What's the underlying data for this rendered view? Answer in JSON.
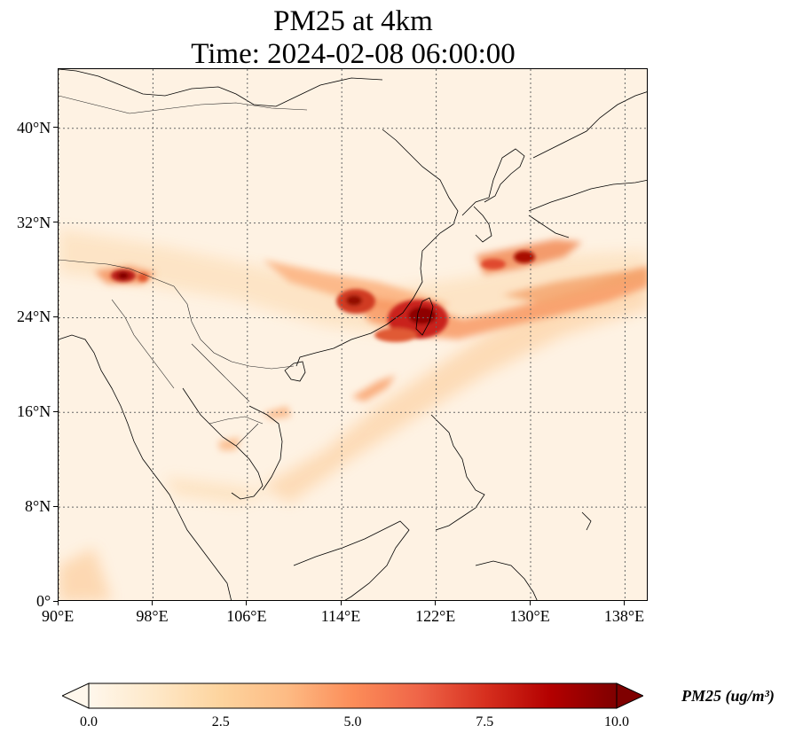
{
  "title": {
    "line1": "PM25 at 4km",
    "line2": "Time: 2024-02-08 06:00:00"
  },
  "map": {
    "lon_range": [
      90,
      140
    ],
    "lat_range": [
      0,
      45
    ],
    "lon_ticks": [
      "90°E",
      "98°E",
      "106°E",
      "114°E",
      "122°E",
      "130°E",
      "138°E"
    ],
    "lat_ticks": [
      "0°",
      "8°N",
      "16°N",
      "24°N",
      "32°N",
      "40°N"
    ],
    "gridlines": "dotted",
    "hotspots": [
      {
        "lon": 119.5,
        "lat": 25.0,
        "value": 9.5
      },
      {
        "lon": 115.2,
        "lat": 25.3,
        "value": 9.0
      },
      {
        "lon": 95.5,
        "lat": 27.9,
        "value": 8.5
      },
      {
        "lon": 130.0,
        "lat": 29.3,
        "value": 8.5
      },
      {
        "lon": 128.0,
        "lat": 28.8,
        "value": 6.5
      },
      {
        "lon": 117.5,
        "lat": 19.0,
        "value": 4.5
      },
      {
        "lon": 108.5,
        "lat": 15.8,
        "value": 3.0
      },
      {
        "lon": 104.5,
        "lat": 13.5,
        "value": 3.0
      }
    ]
  },
  "colorbar": {
    "label": "PM25 (ug/m³)",
    "min": 0.0,
    "max": 10.0,
    "ticks": [
      "0.0",
      "2.5",
      "5.0",
      "7.5",
      "10.0"
    ],
    "extend": "both",
    "colormap": [
      "#fff7ec",
      "#fee8c8",
      "#fdd49e",
      "#fdbb84",
      "#fc8d59",
      "#ef6548",
      "#d7301f",
      "#b30000",
      "#7f0000"
    ]
  }
}
